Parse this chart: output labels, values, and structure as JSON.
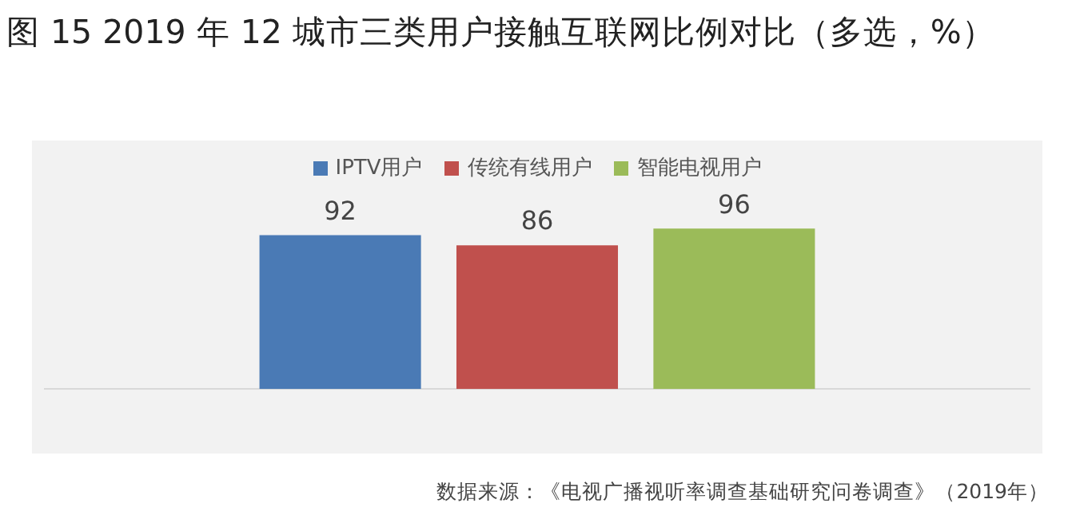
{
  "chart_data": {
    "type": "bar",
    "title": "图 15 2019 年 12 城市三类用户接触互联网比例对比（多选，%）",
    "categories": [
      null
    ],
    "series": [
      {
        "name": "IPTV用户",
        "color": "#4a7ab5",
        "values": [
          92
        ]
      },
      {
        "name": "传统有线用户",
        "color": "#c0504d",
        "values": [
          86
        ]
      },
      {
        "name": "智能电视用户",
        "color": "#9bbb59",
        "values": [
          96
        ]
      }
    ],
    "data_labels": true,
    "grid": false,
    "legend": "top",
    "annotations": [
      "数据来源：《电视广播视听率调查基础研究问卷调查》（2019年）"
    ]
  }
}
